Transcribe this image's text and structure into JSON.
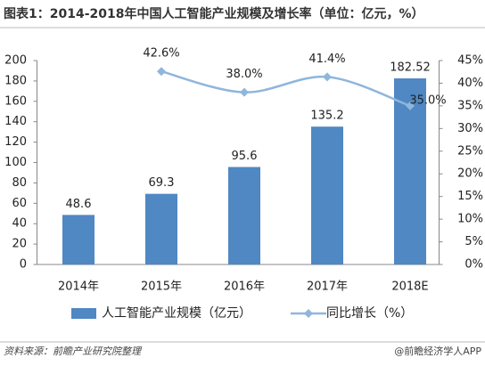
{
  "chart_data": {
    "type": "bar_line",
    "title": "图表1：2014-2018年中国人工智能产业规模及增长率（单位：亿元，%）",
    "categories": [
      "2014年",
      "2015年",
      "2016年",
      "2017年",
      "2018E"
    ],
    "series": [
      {
        "name": "人工智能产业规模（亿元）",
        "type": "bar",
        "color": "#4f88c3",
        "values": [
          48.6,
          69.3,
          95.6,
          135.2,
          182.52
        ]
      },
      {
        "name": "同比增长（%）",
        "type": "line",
        "axis": "y2",
        "color": "#8fb6dc",
        "values": [
          null,
          42.6,
          38.0,
          41.4,
          35.0
        ],
        "value_labels": [
          null,
          "42.6%",
          "38.0%",
          "41.4%",
          "35.0%"
        ]
      }
    ],
    "ylim": [
      0,
      200
    ],
    "yticks": [
      0,
      20,
      40,
      60,
      80,
      100,
      120,
      140,
      160,
      180,
      200
    ],
    "y2lim": [
      0,
      45
    ],
    "y2ticks": [
      {
        "value": 0,
        "label": "0%"
      },
      {
        "value": 5,
        "label": "5%"
      },
      {
        "value": 10,
        "label": "10%"
      },
      {
        "value": 15,
        "label": "15%"
      },
      {
        "value": 20,
        "label": "20%"
      },
      {
        "value": 25,
        "label": "25%"
      },
      {
        "value": 30,
        "label": "30%"
      },
      {
        "value": 35,
        "label": "35%"
      },
      {
        "value": 40,
        "label": "40%"
      },
      {
        "value": 45,
        "label": "45%"
      }
    ],
    "source": "资料来源：前瞻产业研究院整理",
    "brand": "@前瞻经济学人APP"
  }
}
